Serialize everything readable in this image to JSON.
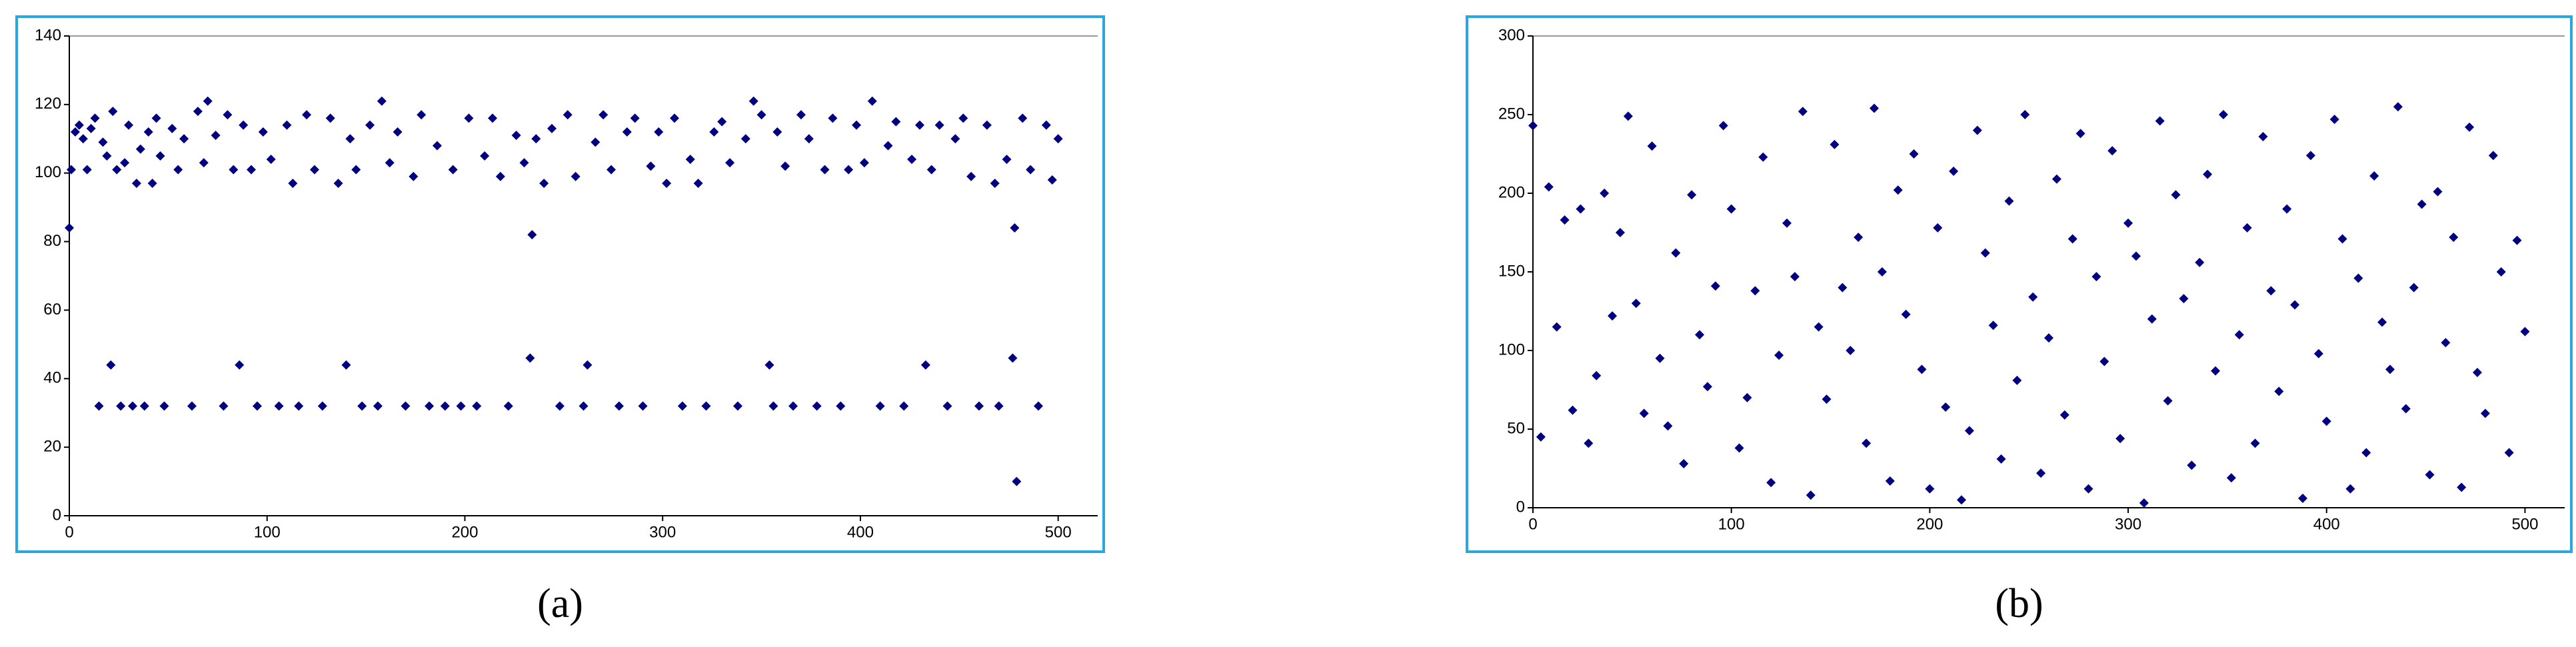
{
  "chart_data": [
    {
      "type": "scatter",
      "caption": "(a)",
      "color": "#000080",
      "xlim": [
        0,
        520
      ],
      "ylim": [
        0,
        140
      ],
      "xticks": [
        0,
        100,
        200,
        300,
        400,
        500
      ],
      "yticks": [
        0,
        20,
        40,
        60,
        80,
        100,
        120,
        140
      ],
      "x": [
        0,
        1,
        3,
        5,
        7,
        9,
        11,
        13,
        15,
        17,
        19,
        21,
        22,
        24,
        26,
        28,
        30,
        32,
        34,
        36,
        38,
        40,
        42,
        44,
        46,
        48,
        52,
        55,
        58,
        62,
        65,
        68,
        70,
        74,
        78,
        80,
        83,
        86,
        88,
        92,
        95,
        98,
        102,
        106,
        110,
        113,
        116,
        120,
        124,
        128,
        132,
        136,
        140,
        142,
        145,
        148,
        152,
        156,
        158,
        162,
        166,
        170,
        174,
        178,
        182,
        186,
        190,
        194,
        198,
        202,
        206,
        210,
        214,
        218,
        222,
        226,
        230,
        233,
        234,
        236,
        240,
        244,
        248,
        252,
        256,
        260,
        262,
        266,
        270,
        274,
        278,
        282,
        286,
        290,
        294,
        298,
        302,
        306,
        310,
        314,
        318,
        322,
        326,
        330,
        334,
        338,
        342,
        346,
        350,
        354,
        356,
        358,
        362,
        366,
        370,
        374,
        378,
        382,
        386,
        390,
        394,
        398,
        402,
        406,
        410,
        414,
        418,
        422,
        426,
        430,
        433,
        436,
        440,
        444,
        448,
        452,
        456,
        460,
        464,
        468,
        470,
        474,
        477,
        478,
        479,
        482,
        486,
        490,
        494,
        497,
        500
      ],
      "values": [
        84,
        101,
        112,
        114,
        110,
        101,
        113,
        116,
        32,
        109,
        105,
        44,
        118,
        101,
        32,
        103,
        114,
        32,
        97,
        107,
        32,
        112,
        97,
        116,
        105,
        32,
        113,
        101,
        110,
        32,
        118,
        103,
        121,
        111,
        32,
        117,
        101,
        44,
        114,
        101,
        32,
        112,
        104,
        32,
        114,
        97,
        32,
        117,
        101,
        32,
        116,
        97,
        44,
        110,
        101,
        32,
        114,
        32,
        121,
        103,
        112,
        32,
        99,
        117,
        32,
        108,
        32,
        101,
        32,
        116,
        32,
        105,
        116,
        99,
        32,
        111,
        103,
        46,
        82,
        110,
        97,
        113,
        32,
        117,
        99,
        32,
        44,
        109,
        117,
        101,
        32,
        112,
        116,
        32,
        102,
        112,
        97,
        116,
        32,
        104,
        97,
        32,
        112,
        115,
        103,
        32,
        110,
        121,
        117,
        44,
        32,
        112,
        102,
        32,
        117,
        110,
        32,
        101,
        116,
        32,
        101,
        114,
        103,
        121,
        32,
        108,
        115,
        32,
        104,
        114,
        44,
        101,
        114,
        32,
        110,
        116,
        99,
        32,
        114,
        97,
        32,
        104,
        46,
        84,
        10,
        116,
        101,
        32,
        114,
        98,
        110
      ]
    },
    {
      "type": "scatter",
      "caption": "(b)",
      "color": "#000080",
      "xlim": [
        0,
        520
      ],
      "ylim": [
        0,
        300
      ],
      "xticks": [
        0,
        100,
        200,
        300,
        400,
        500
      ],
      "yticks": [
        0,
        50,
        100,
        150,
        200,
        250,
        300
      ],
      "x": [
        0,
        4,
        8,
        12,
        16,
        20,
        24,
        28,
        32,
        36,
        40,
        44,
        48,
        52,
        56,
        60,
        64,
        68,
        72,
        76,
        80,
        84,
        88,
        92,
        96,
        100,
        104,
        108,
        112,
        116,
        120,
        124,
        128,
        132,
        136,
        140,
        144,
        148,
        152,
        156,
        160,
        164,
        168,
        172,
        176,
        180,
        184,
        188,
        192,
        196,
        200,
        204,
        208,
        212,
        216,
        220,
        224,
        228,
        232,
        236,
        240,
        244,
        248,
        252,
        256,
        260,
        264,
        268,
        272,
        276,
        280,
        284,
        288,
        292,
        296,
        300,
        304,
        308,
        312,
        316,
        320,
        324,
        328,
        332,
        336,
        340,
        344,
        348,
        352,
        356,
        360,
        364,
        368,
        372,
        376,
        380,
        384,
        388,
        392,
        396,
        400,
        404,
        408,
        412,
        416,
        420,
        424,
        428,
        432,
        436,
        440,
        444,
        448,
        452,
        456,
        460,
        464,
        468,
        472,
        476,
        480,
        484,
        488,
        492,
        496,
        500
      ],
      "values": [
        243,
        45,
        204,
        115,
        183,
        62,
        190,
        41,
        84,
        200,
        122,
        175,
        249,
        130,
        60,
        230,
        95,
        52,
        162,
        28,
        199,
        110,
        77,
        141,
        243,
        190,
        38,
        70,
        138,
        223,
        16,
        97,
        181,
        147,
        252,
        8,
        115,
        69,
        231,
        140,
        100,
        172,
        41,
        254,
        150,
        17,
        202,
        123,
        225,
        88,
        12,
        178,
        64,
        214,
        5,
        49,
        240,
        162,
        116,
        31,
        195,
        81,
        250,
        134,
        22,
        108,
        209,
        59,
        171,
        238,
        12,
        147,
        93,
        227,
        44,
        181,
        160,
        3,
        120,
        246,
        68,
        199,
        133,
        27,
        156,
        212,
        87,
        250,
        19,
        110,
        178,
        41,
        236,
        138,
        74,
        190,
        129,
        6,
        224,
        98,
        55,
        247,
        171,
        12,
        146,
        35,
        211,
        118,
        88,
        255,
        63,
        140,
        193,
        21,
        201,
        105,
        172,
        13,
        242,
        86,
        60,
        224,
        150,
        35,
        170,
        112
      ]
    }
  ]
}
